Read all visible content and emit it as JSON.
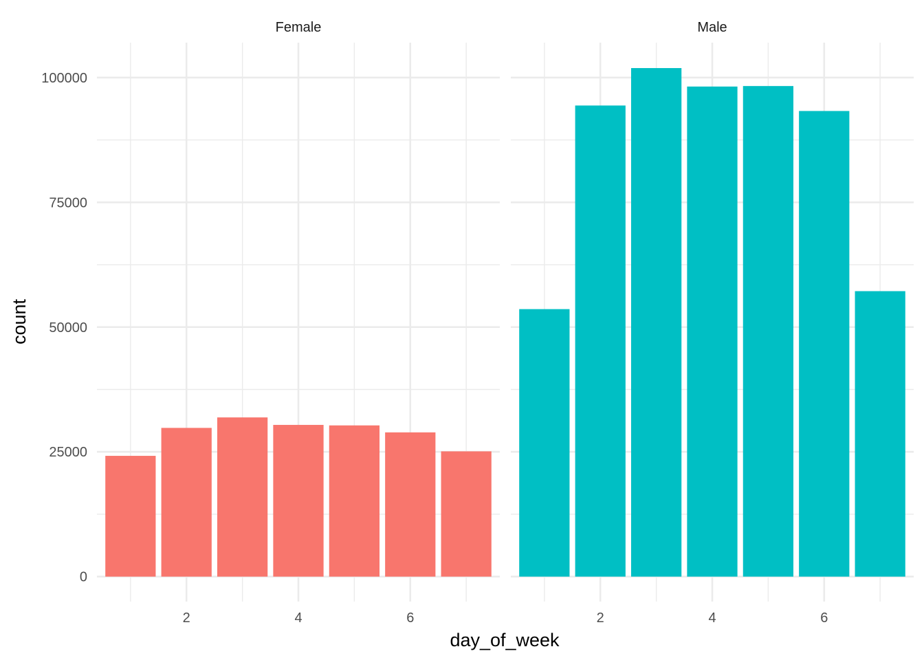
{
  "chart_data": {
    "type": "bar",
    "xlabel": "day_of_week",
    "ylabel": "count",
    "x_ticks": [
      2,
      4,
      6
    ],
    "y_ticks": [
      0,
      25000,
      50000,
      75000,
      100000
    ],
    "xlim": [
      0.4,
      7.6
    ],
    "ylim": [
      -5000,
      107000
    ],
    "grid": true,
    "facets": [
      {
        "name": "Female",
        "color": "#F8766D",
        "x": [
          1,
          2,
          3,
          4,
          5,
          6,
          7
        ],
        "values": [
          24200,
          29800,
          31900,
          30400,
          30300,
          28900,
          25100
        ]
      },
      {
        "name": "Male",
        "color": "#00BFC4",
        "x": [
          1,
          2,
          3,
          4,
          5,
          6,
          7
        ],
        "values": [
          53600,
          94400,
          101900,
          98200,
          98300,
          93300,
          57200
        ]
      }
    ]
  }
}
